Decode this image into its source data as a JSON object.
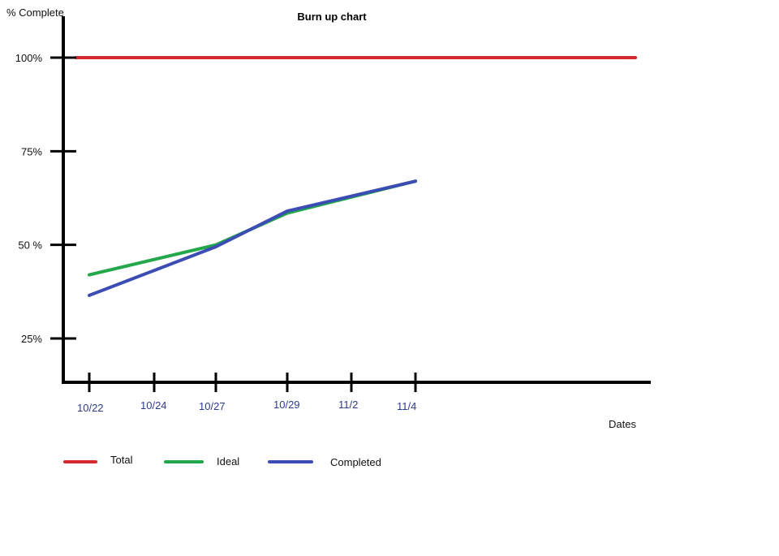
{
  "chart_data": {
    "type": "line",
    "title": "Burn up chart",
    "ylabel": "% Complete",
    "xlabel": "Dates",
    "categories": [
      "10/22",
      "10/24",
      "10/27",
      "10/29",
      "11/2",
      "11/4"
    ],
    "y_ticks": [
      {
        "value": 25,
        "label": "25%"
      },
      {
        "value": 50,
        "label": "50 %"
      },
      {
        "value": 75,
        "label": "75%"
      },
      {
        "value": 100,
        "label": "100%"
      }
    ],
    "ylim": [
      14,
      109
    ],
    "grid": false,
    "legend_position": "bottom-left",
    "series": [
      {
        "name": "Total",
        "color": "#d42a2a",
        "x": [
          10.2,
          17.0
        ],
        "values": [
          100,
          100
        ]
      },
      {
        "name": "Ideal",
        "color": "#22a84a",
        "x": [
          10.22,
          10.27,
          10.29,
          11.4
        ],
        "values": [
          42,
          50,
          58.5,
          67
        ]
      },
      {
        "name": "Completed",
        "color": "#3b4db5",
        "x": [
          10.22,
          10.27,
          10.29,
          11.4
        ],
        "values": [
          36.5,
          49.5,
          59,
          67
        ]
      }
    ]
  }
}
